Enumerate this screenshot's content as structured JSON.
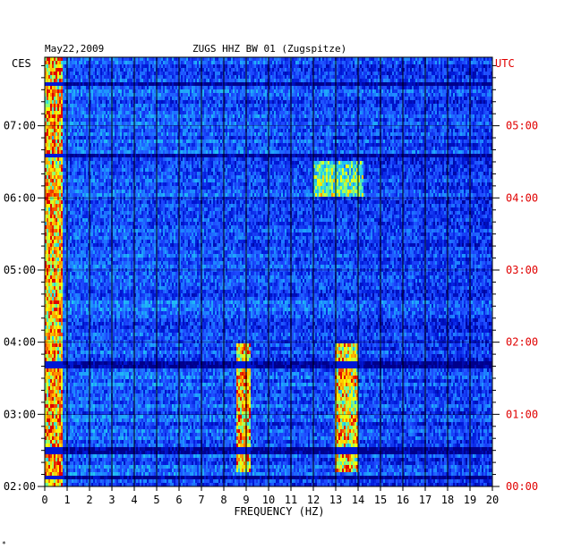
{
  "header": {
    "date": "May22,2009",
    "station": "ZUGS HHZ BW 01 (Zugspitze)"
  },
  "left_timezone": "CES",
  "right_timezone": "UTC",
  "footer_mark": "*",
  "colors": {
    "frame": "#000000",
    "grid": "#000000",
    "left_labels": "#000000",
    "right_labels": "#e00000",
    "colormap": [
      "#00008c",
      "#0018d8",
      "#1f4bff",
      "#1e90ff",
      "#22d3ee",
      "#7fff7f",
      "#ffff00",
      "#ff8c00",
      "#e00000"
    ]
  },
  "chart_data": {
    "type": "heatmap",
    "title": "ZUGS HHZ BW 01 (Zugspitze)",
    "xlabel": "FREQUENCY (HZ)",
    "xlim": [
      0,
      20
    ],
    "x_ticks": [
      "0",
      "1",
      "2",
      "3",
      "4",
      "5",
      "6",
      "7",
      "8",
      "9",
      "10",
      "11",
      "12",
      "13",
      "14",
      "15",
      "16",
      "17",
      "18",
      "19",
      "20"
    ],
    "y_left_label": "CES",
    "y_left_ticks": [
      "07:00",
      "06:00",
      "05:00",
      "04:00",
      "03:00",
      "02:00"
    ],
    "y_right_label": "UTC",
    "y_right_ticks": [
      "05:00",
      "04:00",
      "03:00",
      "02:00",
      "01:00",
      "00:00"
    ],
    "ylim_ces_hours": [
      2,
      7.95
    ],
    "grid": true,
    "energy_bands": [
      {
        "freq_hz": [
          0,
          0.8
        ],
        "time_ces_hours": [
          2,
          7.95
        ],
        "level": "high"
      },
      {
        "freq_hz": [
          8.6,
          9.2
        ],
        "time_ces_hours": [
          2.2,
          4.0
        ],
        "level": "high"
      },
      {
        "freq_hz": [
          13.0,
          14.0
        ],
        "time_ces_hours": [
          2.2,
          4.0
        ],
        "level": "high"
      },
      {
        "freq_hz": [
          12.0,
          14.2
        ],
        "time_ces_hours": [
          6.0,
          6.5
        ],
        "level": "medium"
      }
    ],
    "quiet_intervals_ces_hours": [
      [
        2.45,
        2.55
      ],
      [
        2.1,
        2.15
      ],
      [
        3.65,
        3.75
      ],
      [
        6.55,
        6.6
      ],
      [
        7.55,
        7.6
      ]
    ]
  }
}
